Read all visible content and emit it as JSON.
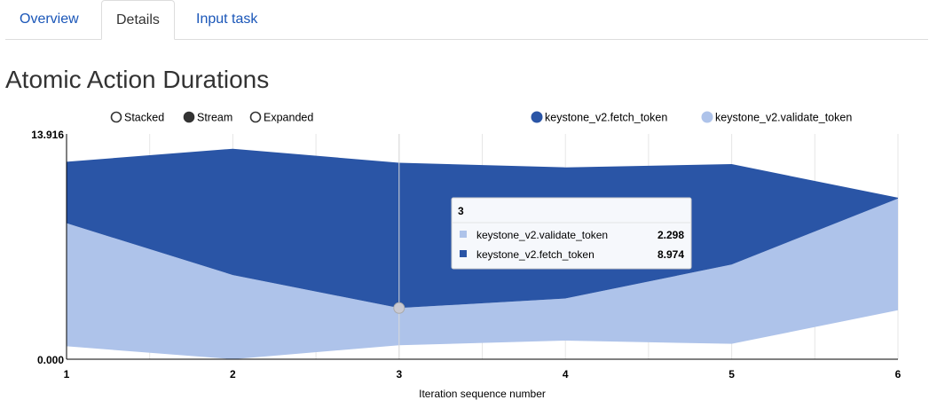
{
  "tabs": [
    {
      "label": "Overview",
      "active": false
    },
    {
      "label": "Details",
      "active": true
    },
    {
      "label": "Input task",
      "active": false
    }
  ],
  "page_title": "Atomic Action Durations",
  "chart_controls": {
    "options": [
      "Stacked",
      "Stream",
      "Expanded"
    ],
    "selected": "Stream"
  },
  "colors": {
    "fetch_token": "#2a55a6",
    "validate_token": "#aec3ea",
    "tab_link": "#1a56b8",
    "grid": "#e6e6e6"
  },
  "chart_data": {
    "type": "area",
    "mode": "stream",
    "xlabel": "Iteration sequence number",
    "ylabel": "",
    "x": [
      1,
      2,
      3,
      4,
      5,
      6
    ],
    "ylim": [
      0,
      13.916
    ],
    "y_tick_labels": [
      "0.000",
      "13.916"
    ],
    "x_tick_labels": [
      "1",
      "2",
      "3",
      "4",
      "5",
      "6"
    ],
    "legend_position": "top-right",
    "series": [
      {
        "name": "keystone_v2.validate_token",
        "values": [
          7.6,
          5.2,
          2.298,
          2.6,
          4.9,
          6.9
        ]
      },
      {
        "name": "keystone_v2.fetch_token",
        "values": [
          3.8,
          7.8,
          8.974,
          8.1,
          6.2,
          0.05
        ]
      }
    ],
    "tooltip": {
      "x": "3",
      "rows": [
        {
          "name": "keystone_v2.validate_token",
          "value": "2.298"
        },
        {
          "name": "keystone_v2.fetch_token",
          "value": "8.974"
        }
      ]
    }
  }
}
